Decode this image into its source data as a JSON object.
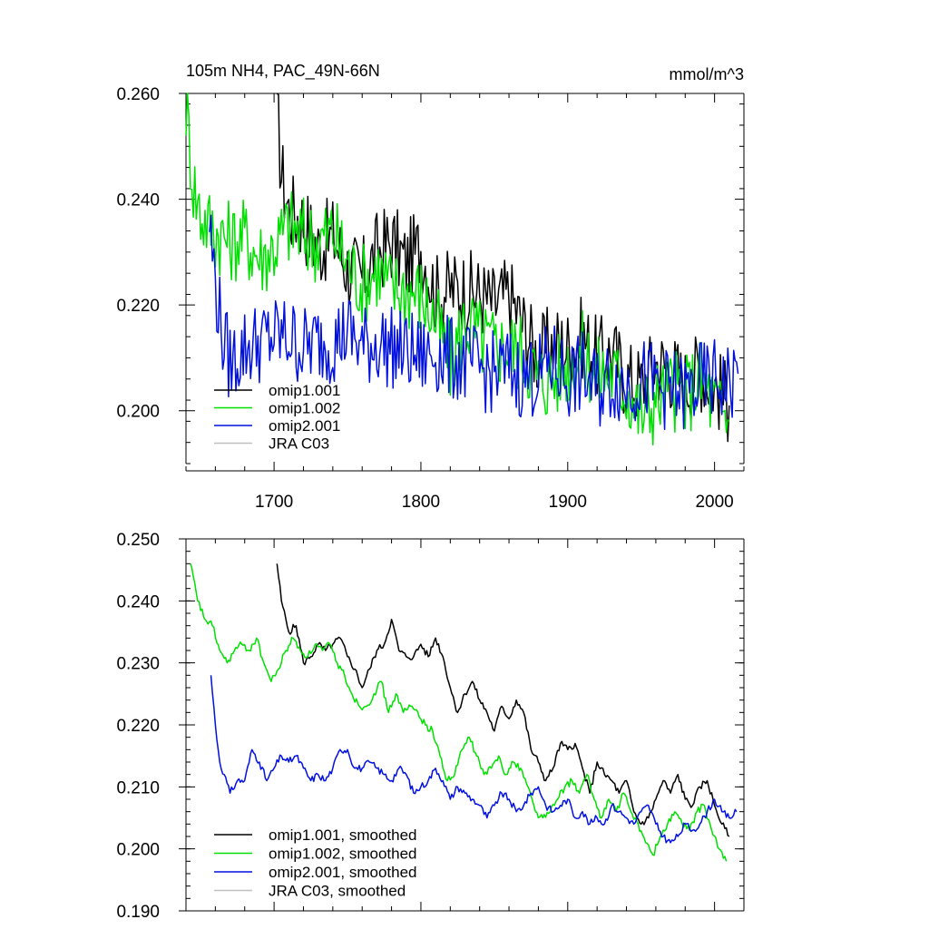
{
  "chart_data": [
    {
      "type": "line",
      "title": "105m NH4, PAC_49N-66N",
      "units": "mmol/m^3",
      "xlim": [
        1640,
        2020
      ],
      "ylim": [
        0.19,
        0.26
      ],
      "x_ticks": [
        1700,
        1800,
        1900,
        2000
      ],
      "x_tick_labels": [
        "1700",
        "1800",
        "1900",
        "2000"
      ],
      "y_ticks": [
        0.2,
        0.22,
        0.24,
        0.26
      ],
      "y_tick_labels": [
        "0.200",
        "0.220",
        "0.240",
        "0.260"
      ],
      "legend_position": "bottom-left",
      "series": [
        {
          "name": "omip1.001",
          "color": "#000000",
          "x": [
            1702,
            1705,
            1710,
            1720,
            1730,
            1740,
            1750,
            1760,
            1770,
            1780,
            1790,
            1800,
            1810,
            1820,
            1830,
            1840,
            1850,
            1860,
            1870,
            1880,
            1890,
            1900,
            1910,
            1920,
            1930,
            1940,
            1950,
            1960,
            1970,
            1980,
            1990,
            2000,
            2010
          ],
          "y": [
            0.257,
            0.245,
            0.238,
            0.236,
            0.231,
            0.233,
            0.227,
            0.225,
            0.23,
            0.232,
            0.228,
            0.231,
            0.222,
            0.223,
            0.223,
            0.222,
            0.22,
            0.222,
            0.216,
            0.21,
            0.213,
            0.212,
            0.214,
            0.21,
            0.211,
            0.206,
            0.205,
            0.209,
            0.208,
            0.205,
            0.208,
            0.205,
            0.201
          ]
        },
        {
          "name": "omip1.002",
          "color": "#00e000",
          "x": [
            1640,
            1645,
            1650,
            1660,
            1670,
            1680,
            1690,
            1700,
            1710,
            1720,
            1730,
            1740,
            1750,
            1760,
            1770,
            1780,
            1790,
            1800,
            1810,
            1820,
            1830,
            1840,
            1850,
            1860,
            1870,
            1880,
            1890,
            1900,
            1910,
            1920,
            1930,
            1940,
            1950,
            1960,
            1970,
            1980,
            1990,
            2000,
            2010
          ],
          "y": [
            0.258,
            0.243,
            0.237,
            0.234,
            0.232,
            0.233,
            0.229,
            0.231,
            0.235,
            0.233,
            0.232,
            0.234,
            0.228,
            0.224,
            0.227,
            0.223,
            0.223,
            0.222,
            0.217,
            0.209,
            0.217,
            0.214,
            0.212,
            0.212,
            0.211,
            0.206,
            0.206,
            0.209,
            0.211,
            0.207,
            0.207,
            0.204,
            0.199,
            0.202,
            0.204,
            0.203,
            0.206,
            0.201,
            0.198
          ]
        },
        {
          "name": "omip2.001",
          "color": "#0010e0",
          "x": [
            1656,
            1660,
            1665,
            1670,
            1680,
            1690,
            1700,
            1710,
            1720,
            1730,
            1740,
            1750,
            1760,
            1770,
            1780,
            1790,
            1800,
            1810,
            1820,
            1830,
            1840,
            1850,
            1860,
            1870,
            1880,
            1890,
            1900,
            1910,
            1920,
            1930,
            1940,
            1950,
            1960,
            1970,
            1980,
            1990,
            2000,
            2010,
            2016
          ],
          "y": [
            0.236,
            0.224,
            0.214,
            0.209,
            0.212,
            0.213,
            0.214,
            0.214,
            0.212,
            0.213,
            0.213,
            0.215,
            0.212,
            0.213,
            0.212,
            0.211,
            0.21,
            0.211,
            0.21,
            0.209,
            0.208,
            0.207,
            0.208,
            0.206,
            0.207,
            0.209,
            0.206,
            0.207,
            0.204,
            0.206,
            0.205,
            0.206,
            0.205,
            0.204,
            0.203,
            0.205,
            0.206,
            0.205,
            0.207
          ]
        },
        {
          "name": "JRA C03",
          "color": "#c0c0c0",
          "x": [],
          "y": []
        }
      ]
    },
    {
      "type": "line",
      "title": "",
      "xlim": [
        1640,
        2020
      ],
      "ylim": [
        0.19,
        0.25
      ],
      "x_ticks": [
        1700,
        1800,
        1900,
        2000
      ],
      "y_ticks": [
        0.19,
        0.2,
        0.21,
        0.22,
        0.23,
        0.24,
        0.25
      ],
      "y_tick_labels": [
        "0.190",
        "0.200",
        "0.210",
        "0.220",
        "0.230",
        "0.240",
        "0.250"
      ],
      "legend_position": "bottom-left",
      "series": [
        {
          "name": "omip1.001, smoothed",
          "color": "#000000",
          "x": [
            1702,
            1705,
            1710,
            1715,
            1720,
            1725,
            1730,
            1735,
            1740,
            1745,
            1750,
            1755,
            1760,
            1765,
            1770,
            1775,
            1780,
            1785,
            1790,
            1795,
            1800,
            1805,
            1810,
            1815,
            1820,
            1825,
            1830,
            1835,
            1840,
            1845,
            1850,
            1855,
            1860,
            1865,
            1870,
            1875,
            1880,
            1885,
            1890,
            1895,
            1900,
            1905,
            1910,
            1915,
            1920,
            1925,
            1930,
            1935,
            1940,
            1945,
            1950,
            1955,
            1960,
            1965,
            1970,
            1975,
            1980,
            1985,
            1990,
            1995,
            2000,
            2005,
            2010
          ],
          "y": [
            0.246,
            0.24,
            0.235,
            0.236,
            0.23,
            0.231,
            0.233,
            0.232,
            0.233,
            0.234,
            0.231,
            0.229,
            0.226,
            0.229,
            0.232,
            0.233,
            0.237,
            0.232,
            0.231,
            0.231,
            0.233,
            0.231,
            0.234,
            0.231,
            0.226,
            0.222,
            0.225,
            0.227,
            0.224,
            0.222,
            0.219,
            0.223,
            0.221,
            0.224,
            0.222,
            0.216,
            0.214,
            0.211,
            0.213,
            0.217,
            0.216,
            0.217,
            0.213,
            0.209,
            0.214,
            0.212,
            0.211,
            0.209,
            0.211,
            0.206,
            0.204,
            0.205,
            0.208,
            0.211,
            0.209,
            0.212,
            0.208,
            0.207,
            0.21,
            0.211,
            0.207,
            0.204,
            0.202
          ]
        },
        {
          "name": "omip1.002, smoothed",
          "color": "#00e000",
          "x": [
            1643,
            1648,
            1653,
            1658,
            1663,
            1668,
            1673,
            1678,
            1683,
            1688,
            1693,
            1698,
            1703,
            1708,
            1713,
            1718,
            1723,
            1728,
            1733,
            1738,
            1743,
            1748,
            1753,
            1758,
            1763,
            1768,
            1773,
            1778,
            1783,
            1788,
            1793,
            1798,
            1803,
            1808,
            1813,
            1818,
            1823,
            1828,
            1833,
            1838,
            1843,
            1848,
            1853,
            1858,
            1863,
            1868,
            1873,
            1878,
            1883,
            1888,
            1893,
            1898,
            1903,
            1908,
            1913,
            1918,
            1923,
            1928,
            1933,
            1938,
            1943,
            1948,
            1953,
            1958,
            1963,
            1968,
            1973,
            1978,
            1983,
            1988,
            1993,
            1998,
            2003,
            2008
          ],
          "y": [
            0.246,
            0.24,
            0.237,
            0.236,
            0.232,
            0.23,
            0.232,
            0.233,
            0.232,
            0.234,
            0.23,
            0.227,
            0.229,
            0.232,
            0.234,
            0.232,
            0.231,
            0.233,
            0.232,
            0.233,
            0.23,
            0.228,
            0.225,
            0.223,
            0.223,
            0.225,
            0.227,
            0.222,
            0.225,
            0.222,
            0.223,
            0.222,
            0.22,
            0.219,
            0.215,
            0.211,
            0.212,
            0.216,
            0.218,
            0.215,
            0.212,
            0.213,
            0.215,
            0.212,
            0.214,
            0.213,
            0.21,
            0.206,
            0.205,
            0.206,
            0.208,
            0.21,
            0.211,
            0.209,
            0.212,
            0.208,
            0.205,
            0.208,
            0.206,
            0.209,
            0.206,
            0.204,
            0.201,
            0.199,
            0.202,
            0.204,
            0.206,
            0.204,
            0.203,
            0.206,
            0.207,
            0.203,
            0.2,
            0.198
          ]
        },
        {
          "name": "omip2.001, smoothed",
          "color": "#0010e0",
          "x": [
            1657,
            1660,
            1663,
            1666,
            1670,
            1675,
            1680,
            1685,
            1690,
            1695,
            1700,
            1705,
            1710,
            1715,
            1720,
            1725,
            1730,
            1735,
            1740,
            1745,
            1750,
            1755,
            1760,
            1765,
            1770,
            1775,
            1780,
            1785,
            1790,
            1795,
            1800,
            1805,
            1810,
            1815,
            1820,
            1825,
            1830,
            1835,
            1840,
            1845,
            1850,
            1855,
            1860,
            1865,
            1870,
            1875,
            1880,
            1885,
            1890,
            1895,
            1900,
            1905,
            1910,
            1915,
            1920,
            1925,
            1930,
            1935,
            1940,
            1945,
            1950,
            1955,
            1960,
            1965,
            1970,
            1975,
            1980,
            1985,
            1990,
            1995,
            2000,
            2005,
            2010,
            2015
          ],
          "y": [
            0.228,
            0.22,
            0.214,
            0.212,
            0.209,
            0.211,
            0.211,
            0.216,
            0.214,
            0.211,
            0.213,
            0.215,
            0.214,
            0.215,
            0.213,
            0.211,
            0.212,
            0.211,
            0.213,
            0.216,
            0.216,
            0.213,
            0.213,
            0.214,
            0.213,
            0.212,
            0.211,
            0.213,
            0.212,
            0.209,
            0.21,
            0.211,
            0.213,
            0.211,
            0.208,
            0.21,
            0.209,
            0.208,
            0.207,
            0.205,
            0.207,
            0.209,
            0.208,
            0.206,
            0.207,
            0.209,
            0.21,
            0.207,
            0.206,
            0.207,
            0.208,
            0.205,
            0.206,
            0.204,
            0.205,
            0.204,
            0.207,
            0.206,
            0.205,
            0.204,
            0.206,
            0.207,
            0.204,
            0.202,
            0.201,
            0.202,
            0.204,
            0.203,
            0.204,
            0.206,
            0.208,
            0.206,
            0.205,
            0.206
          ]
        },
        {
          "name": "JRA C03, smoothed",
          "color": "#c0c0c0",
          "x": [],
          "y": []
        }
      ]
    }
  ]
}
